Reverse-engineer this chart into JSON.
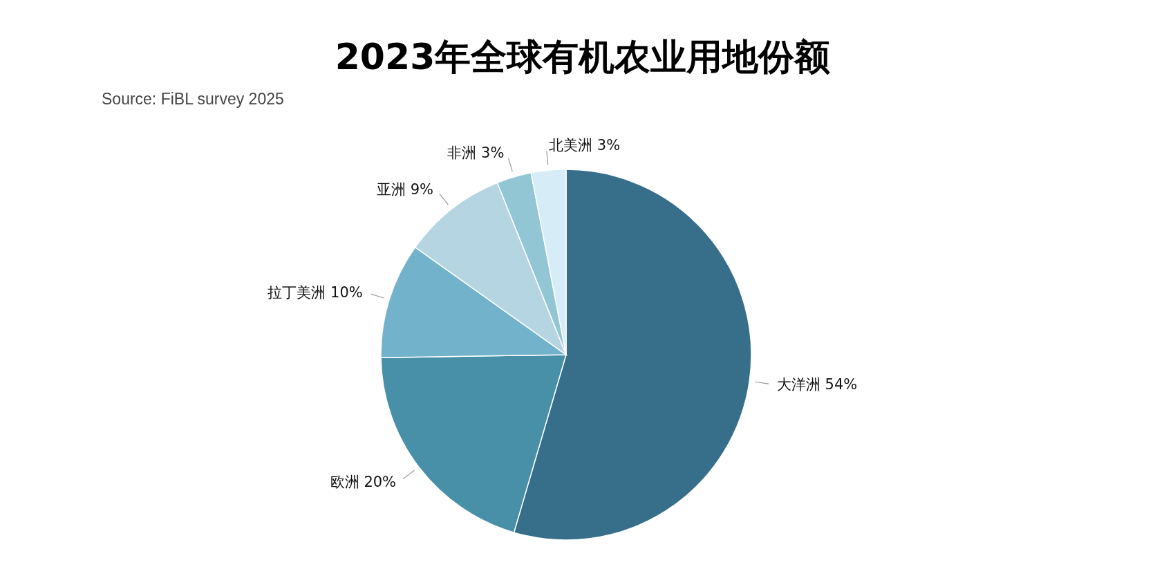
{
  "chart_data": {
    "type": "pie",
    "title": "2023年全球有机农业用地份额",
    "annotations": [
      "Source: FiBL survey 2025"
    ],
    "categories": [
      "大洋洲",
      "欧洲",
      "拉丁美洲",
      "亚洲",
      "非洲",
      "北美洲"
    ],
    "values": [
      54,
      20,
      10,
      9,
      3,
      3
    ],
    "colors": [
      "#376f8b",
      "#4890a8",
      "#72b3cb",
      "#b5d5e2",
      "#93c6d4",
      "#d6ecf6"
    ],
    "value_labels": [
      "54%",
      "20%",
      "10%",
      "9%",
      "3%",
      "3%"
    ]
  }
}
